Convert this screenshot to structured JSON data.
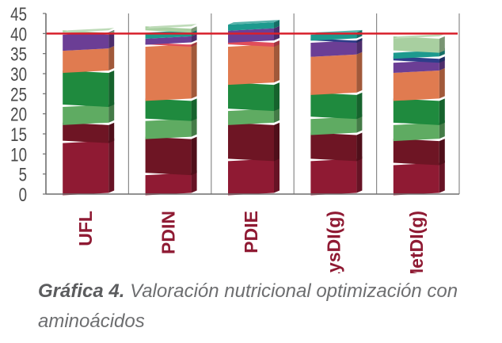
{
  "caption": {
    "label": "Gráfica 4.",
    "text": "Valoración nutricional optimización con aminoácidos"
  },
  "chart_data": {
    "type": "bar",
    "stacked": true,
    "categories": [
      "UFL",
      "PDIN",
      "PDIE",
      "LysDI(g)",
      "MetDI(g)"
    ],
    "ylim": [
      0,
      45
    ],
    "yticks": [
      0,
      5,
      10,
      15,
      20,
      25,
      30,
      35,
      40,
      45
    ],
    "gridlines": "vertical category separators",
    "reference_line": {
      "value": 40,
      "color": "#d8202c"
    },
    "series": [
      {
        "color": "#8f1a33",
        "values": [
          13.0,
          5.0,
          8.5,
          8.5,
          7.5
        ]
      },
      {
        "color": "#6e1524",
        "values": [
          4.5,
          9.0,
          9.0,
          6.5,
          6.0
        ]
      },
      {
        "color": "#5fab62",
        "values": [
          4.5,
          4.5,
          3.5,
          4.0,
          4.0
        ]
      },
      {
        "color": "#1f8a3e",
        "values": [
          8.5,
          5.0,
          6.5,
          6.0,
          6.0
        ]
      },
      {
        "color": "#e07b50",
        "values": [
          5.5,
          13.5,
          9.5,
          9.5,
          7.0
        ]
      },
      {
        "color": "#e04d5b",
        "values": [
          0.0,
          0.5,
          1.0,
          0.0,
          0.0
        ]
      },
      {
        "color": "#6b3e95",
        "values": [
          4.0,
          1.5,
          3.0,
          3.5,
          2.5
        ]
      },
      {
        "color": "#2e3e8a",
        "values": [
          0.0,
          0.0,
          0.0,
          0.5,
          1.0
        ]
      },
      {
        "color": "#1d9a8e",
        "values": [
          0.0,
          1.5,
          1.5,
          1.5,
          1.5
        ]
      },
      {
        "color": "#a8cfa0",
        "values": [
          0.5,
          1.0,
          0.0,
          0.0,
          3.5
        ]
      }
    ]
  }
}
